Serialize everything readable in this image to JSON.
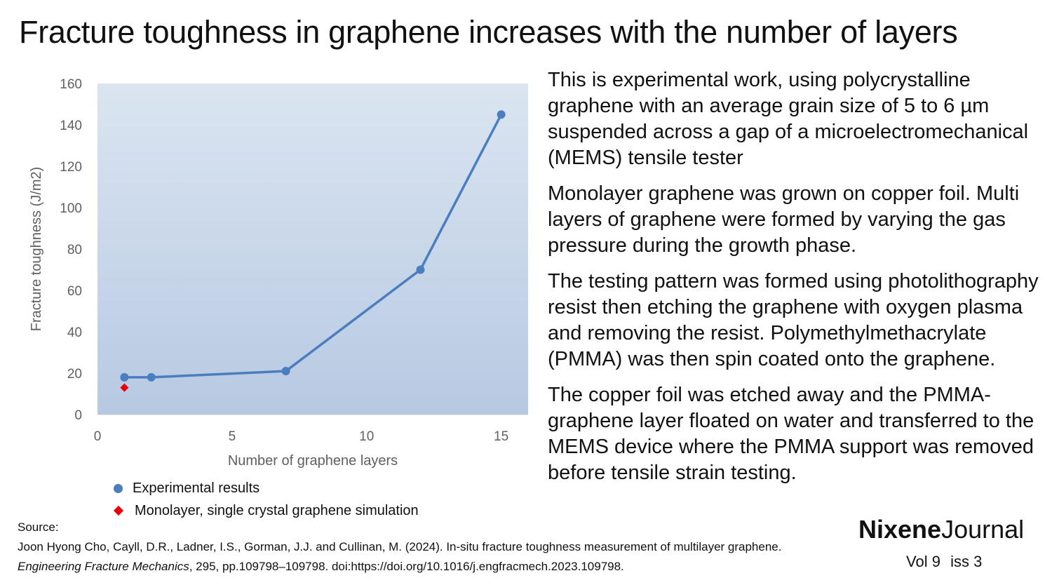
{
  "title": "Fracture toughness in graphene increases with the number of layers",
  "chart_data": {
    "type": "line",
    "xlabel": "Number of graphene layers",
    "ylabel": "Fracture toughness (J/m2)",
    "xlim": [
      0,
      16
    ],
    "ylim": [
      0,
      160
    ],
    "xticks": [
      "0",
      "5",
      "10",
      "15"
    ],
    "yticks": [
      "0",
      "20",
      "40",
      "60",
      "80",
      "100",
      "120",
      "140",
      "160"
    ],
    "grid": false,
    "legend": "bottom",
    "series": [
      {
        "name": "Experimental results",
        "marker": "circle",
        "color": "#4a7ebf",
        "x": [
          1,
          2,
          7,
          12,
          15
        ],
        "y": [
          18,
          18,
          21,
          70,
          145
        ]
      },
      {
        "name": "Monolayer, single crystal graphene simulation",
        "marker": "diamond",
        "color": "#e8000b",
        "x": [
          1
        ],
        "y": [
          13
        ]
      }
    ]
  },
  "paragraphs": [
    "This is experimental work, using polycrystalline graphene with an average grain size of 5 to 6 µm suspended across a gap of a microelectromechanical (MEMS) tensile tester",
    "Monolayer graphene was grown on copper foil. Multi layers of graphene were formed by varying the gas pressure during the growth phase.",
    "The testing pattern was formed using photolithography resist then etching the graphene with oxygen plasma and removing the resist. Polymethylmethacrylate (PMMA) was then spin coated onto the graphene.",
    "The copper foil was etched away and the PMMA-graphene layer floated on water and transferred to the MEMS device where the PMMA support was removed before tensile strain testing."
  ],
  "source": {
    "label": "Source:",
    "citation_pre": "Joon Hyong Cho, Cayll, D.R., Ladner, I.S., Gorman, J.J. and Cullinan, M. (2024). In-situ fracture toughness measurement of multilayer graphene. ",
    "journal": "Engineering Fracture Mechanics",
    "citation_post": ", 295, pp.109798–109798. doi:https://doi.org/10.1016/j.engfracmech.2023.109798."
  },
  "brand": {
    "bold": "Nixene",
    "regular": "Journal"
  },
  "issue": {
    "vol": "Vol 9",
    "iss": "iss 3"
  }
}
